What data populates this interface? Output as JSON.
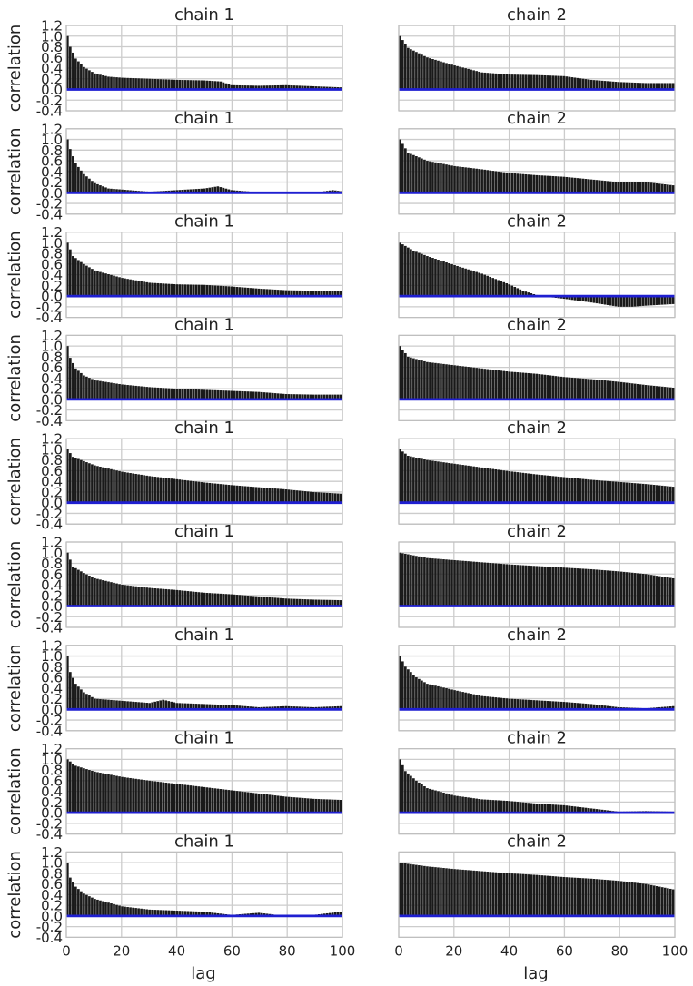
{
  "chart_data": {
    "type": "bar",
    "layout": "small-multiples 9 rows x 2 columns",
    "xlabel": "lag",
    "ylabel": "correlation",
    "xlim": [
      0,
      100
    ],
    "ylim": [
      -0.4,
      1.2
    ],
    "xticks": [
      "0",
      "20",
      "40",
      "60",
      "80",
      "100"
    ],
    "yticks": [
      "1.2",
      "1.0",
      "0.8",
      "0.6",
      "0.4",
      "0.2",
      "0.0",
      "-0.2",
      "-0.4"
    ],
    "grid": true,
    "colors": {
      "bars": "#1a1a1a",
      "baseline": "#1f1fd1",
      "grid": "#cccccc",
      "frame": "#bfbfbf"
    },
    "panels": [
      {
        "row": 1,
        "title": "chain 1",
        "keypoints": [
          [
            0,
            1.0
          ],
          [
            1,
            0.8
          ],
          [
            3,
            0.58
          ],
          [
            6,
            0.42
          ],
          [
            10,
            0.3
          ],
          [
            15,
            0.24
          ],
          [
            20,
            0.22
          ],
          [
            30,
            0.2
          ],
          [
            40,
            0.18
          ],
          [
            50,
            0.17
          ],
          [
            56,
            0.15
          ],
          [
            60,
            0.08
          ],
          [
            70,
            0.07
          ],
          [
            80,
            0.08
          ],
          [
            90,
            0.06
          ],
          [
            100,
            0.04
          ]
        ]
      },
      {
        "row": 1,
        "title": "chain 2",
        "keypoints": [
          [
            0,
            1.0
          ],
          [
            3,
            0.78
          ],
          [
            10,
            0.6
          ],
          [
            20,
            0.45
          ],
          [
            30,
            0.32
          ],
          [
            40,
            0.28
          ],
          [
            50,
            0.27
          ],
          [
            60,
            0.25
          ],
          [
            70,
            0.18
          ],
          [
            80,
            0.14
          ],
          [
            90,
            0.12
          ],
          [
            100,
            0.12
          ]
        ]
      },
      {
        "row": 2,
        "title": "chain 1",
        "keypoints": [
          [
            0,
            1.0
          ],
          [
            1,
            0.82
          ],
          [
            3,
            0.55
          ],
          [
            6,
            0.35
          ],
          [
            10,
            0.18
          ],
          [
            15,
            0.08
          ],
          [
            20,
            0.06
          ],
          [
            30,
            0.02
          ],
          [
            40,
            0.05
          ],
          [
            50,
            0.08
          ],
          [
            55,
            0.12
          ],
          [
            60,
            0.05
          ],
          [
            70,
            0.01
          ],
          [
            80,
            0.0
          ],
          [
            90,
            0.0
          ],
          [
            97,
            0.05
          ],
          [
            100,
            0.03
          ]
        ]
      },
      {
        "row": 2,
        "title": "chain 2",
        "keypoints": [
          [
            0,
            1.0
          ],
          [
            3,
            0.75
          ],
          [
            10,
            0.6
          ],
          [
            20,
            0.5
          ],
          [
            30,
            0.44
          ],
          [
            40,
            0.37
          ],
          [
            50,
            0.33
          ],
          [
            60,
            0.3
          ],
          [
            70,
            0.25
          ],
          [
            80,
            0.2
          ],
          [
            90,
            0.2
          ],
          [
            100,
            0.14
          ]
        ]
      },
      {
        "row": 3,
        "title": "chain 1",
        "keypoints": [
          [
            0,
            1.0
          ],
          [
            2,
            0.75
          ],
          [
            6,
            0.6
          ],
          [
            10,
            0.48
          ],
          [
            20,
            0.34
          ],
          [
            30,
            0.25
          ],
          [
            40,
            0.22
          ],
          [
            50,
            0.21
          ],
          [
            60,
            0.18
          ],
          [
            70,
            0.14
          ],
          [
            80,
            0.11
          ],
          [
            90,
            0.1
          ],
          [
            100,
            0.1
          ]
        ]
      },
      {
        "row": 3,
        "title": "chain 2",
        "keypoints": [
          [
            0,
            1.0
          ],
          [
            5,
            0.85
          ],
          [
            10,
            0.75
          ],
          [
            20,
            0.58
          ],
          [
            30,
            0.42
          ],
          [
            40,
            0.22
          ],
          [
            45,
            0.1
          ],
          [
            50,
            0.02
          ],
          [
            55,
            -0.02
          ],
          [
            60,
            -0.05
          ],
          [
            70,
            -0.12
          ],
          [
            80,
            -0.2
          ],
          [
            85,
            -0.2
          ],
          [
            90,
            -0.18
          ],
          [
            100,
            -0.15
          ]
        ]
      },
      {
        "row": 4,
        "title": "chain 1",
        "keypoints": [
          [
            0,
            1.0
          ],
          [
            1,
            0.78
          ],
          [
            3,
            0.58
          ],
          [
            6,
            0.45
          ],
          [
            10,
            0.36
          ],
          [
            20,
            0.28
          ],
          [
            30,
            0.23
          ],
          [
            40,
            0.2
          ],
          [
            50,
            0.18
          ],
          [
            60,
            0.16
          ],
          [
            70,
            0.14
          ],
          [
            80,
            0.1
          ],
          [
            90,
            0.09
          ],
          [
            100,
            0.09
          ]
        ]
      },
      {
        "row": 4,
        "title": "chain 2",
        "keypoints": [
          [
            0,
            1.0
          ],
          [
            3,
            0.8
          ],
          [
            10,
            0.7
          ],
          [
            20,
            0.64
          ],
          [
            30,
            0.58
          ],
          [
            40,
            0.52
          ],
          [
            50,
            0.48
          ],
          [
            60,
            0.42
          ],
          [
            70,
            0.38
          ],
          [
            80,
            0.33
          ],
          [
            90,
            0.27
          ],
          [
            100,
            0.22
          ]
        ]
      },
      {
        "row": 5,
        "title": "chain 1",
        "keypoints": [
          [
            0,
            1.0
          ],
          [
            2,
            0.86
          ],
          [
            10,
            0.7
          ],
          [
            20,
            0.58
          ],
          [
            30,
            0.5
          ],
          [
            40,
            0.44
          ],
          [
            50,
            0.38
          ],
          [
            60,
            0.33
          ],
          [
            70,
            0.29
          ],
          [
            80,
            0.25
          ],
          [
            90,
            0.2
          ],
          [
            100,
            0.17
          ]
        ]
      },
      {
        "row": 5,
        "title": "chain 2",
        "keypoints": [
          [
            0,
            1.0
          ],
          [
            3,
            0.88
          ],
          [
            10,
            0.8
          ],
          [
            20,
            0.73
          ],
          [
            30,
            0.66
          ],
          [
            40,
            0.59
          ],
          [
            50,
            0.53
          ],
          [
            60,
            0.48
          ],
          [
            70,
            0.43
          ],
          [
            80,
            0.39
          ],
          [
            90,
            0.35
          ],
          [
            100,
            0.3
          ]
        ]
      },
      {
        "row": 6,
        "title": "chain 1",
        "keypoints": [
          [
            0,
            1.0
          ],
          [
            2,
            0.74
          ],
          [
            6,
            0.62
          ],
          [
            10,
            0.52
          ],
          [
            20,
            0.4
          ],
          [
            30,
            0.34
          ],
          [
            40,
            0.3
          ],
          [
            50,
            0.25
          ],
          [
            60,
            0.22
          ],
          [
            70,
            0.18
          ],
          [
            80,
            0.14
          ],
          [
            90,
            0.12
          ],
          [
            100,
            0.11
          ]
        ]
      },
      {
        "row": 6,
        "title": "chain 2",
        "keypoints": [
          [
            0,
            1.0
          ],
          [
            10,
            0.9
          ],
          [
            20,
            0.86
          ],
          [
            30,
            0.82
          ],
          [
            40,
            0.78
          ],
          [
            50,
            0.75
          ],
          [
            60,
            0.72
          ],
          [
            70,
            0.69
          ],
          [
            80,
            0.65
          ],
          [
            90,
            0.6
          ],
          [
            100,
            0.52
          ]
        ]
      },
      {
        "row": 7,
        "title": "chain 1",
        "keypoints": [
          [
            0,
            1.0
          ],
          [
            1,
            0.7
          ],
          [
            3,
            0.48
          ],
          [
            6,
            0.32
          ],
          [
            10,
            0.2
          ],
          [
            20,
            0.16
          ],
          [
            30,
            0.12
          ],
          [
            35,
            0.18
          ],
          [
            40,
            0.12
          ],
          [
            50,
            0.1
          ],
          [
            60,
            0.08
          ],
          [
            70,
            0.04
          ],
          [
            80,
            0.06
          ],
          [
            90,
            0.04
          ],
          [
            100,
            0.06
          ]
        ]
      },
      {
        "row": 7,
        "title": "chain 2",
        "keypoints": [
          [
            0,
            1.0
          ],
          [
            2,
            0.8
          ],
          [
            6,
            0.6
          ],
          [
            10,
            0.48
          ],
          [
            20,
            0.36
          ],
          [
            30,
            0.25
          ],
          [
            40,
            0.2
          ],
          [
            50,
            0.17
          ],
          [
            60,
            0.14
          ],
          [
            70,
            0.1
          ],
          [
            80,
            0.04
          ],
          [
            90,
            0.02
          ],
          [
            100,
            0.06
          ]
        ]
      },
      {
        "row": 8,
        "title": "chain 1",
        "keypoints": [
          [
            0,
            1.0
          ],
          [
            3,
            0.88
          ],
          [
            10,
            0.77
          ],
          [
            20,
            0.67
          ],
          [
            30,
            0.6
          ],
          [
            40,
            0.54
          ],
          [
            50,
            0.48
          ],
          [
            60,
            0.42
          ],
          [
            70,
            0.36
          ],
          [
            80,
            0.3
          ],
          [
            90,
            0.26
          ],
          [
            100,
            0.24
          ]
        ]
      },
      {
        "row": 8,
        "title": "chain 2",
        "keypoints": [
          [
            0,
            1.0
          ],
          [
            2,
            0.78
          ],
          [
            6,
            0.6
          ],
          [
            10,
            0.46
          ],
          [
            20,
            0.32
          ],
          [
            30,
            0.25
          ],
          [
            40,
            0.22
          ],
          [
            50,
            0.17
          ],
          [
            60,
            0.14
          ],
          [
            70,
            0.08
          ],
          [
            80,
            0.02
          ],
          [
            90,
            0.03
          ],
          [
            100,
            0.02
          ]
        ]
      },
      {
        "row": 9,
        "title": "chain 1",
        "keypoints": [
          [
            0,
            1.0
          ],
          [
            1,
            0.72
          ],
          [
            3,
            0.55
          ],
          [
            6,
            0.42
          ],
          [
            10,
            0.32
          ],
          [
            15,
            0.25
          ],
          [
            20,
            0.18
          ],
          [
            30,
            0.12
          ],
          [
            40,
            0.1
          ],
          [
            50,
            0.08
          ],
          [
            60,
            0.02
          ],
          [
            70,
            0.06
          ],
          [
            80,
            0.0
          ],
          [
            90,
            0.02
          ],
          [
            100,
            0.08
          ]
        ]
      },
      {
        "row": 9,
        "title": "chain 2",
        "keypoints": [
          [
            0,
            1.0
          ],
          [
            10,
            0.93
          ],
          [
            20,
            0.88
          ],
          [
            30,
            0.84
          ],
          [
            40,
            0.8
          ],
          [
            50,
            0.77
          ],
          [
            60,
            0.73
          ],
          [
            70,
            0.7
          ],
          [
            80,
            0.66
          ],
          [
            90,
            0.6
          ],
          [
            100,
            0.5
          ]
        ]
      }
    ]
  }
}
